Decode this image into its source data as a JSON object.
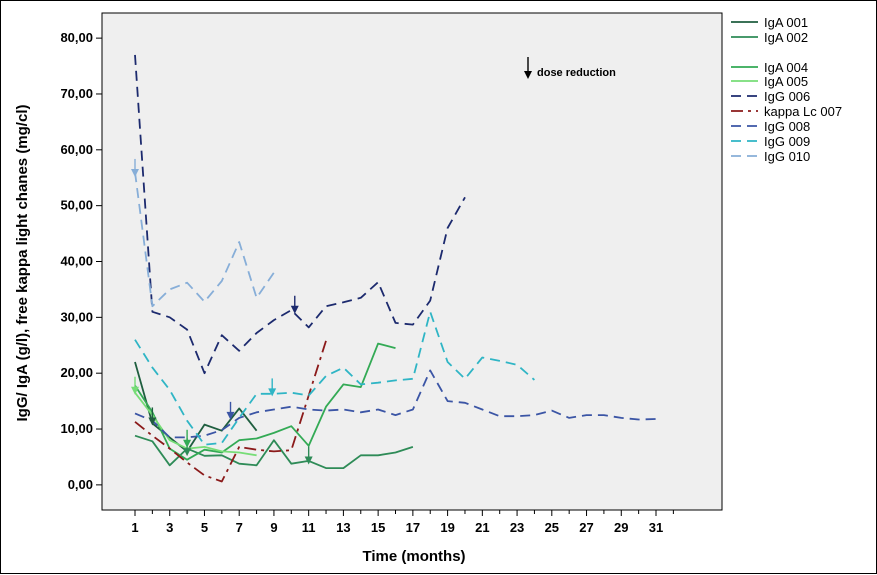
{
  "chart_data": {
    "type": "line",
    "xlabel": "Time (months)",
    "ylabel": "IgG/ IgA (g/l), free kappa light chanes (mg/cl)",
    "xlim": [
      -0.9,
      34.8
    ],
    "ylim": [
      -4.5,
      84.5
    ],
    "x_ticks": [
      1,
      3,
      5,
      7,
      9,
      11,
      13,
      15,
      17,
      19,
      21,
      23,
      25,
      27,
      29,
      31
    ],
    "y_ticks": [
      0,
      10,
      20,
      30,
      40,
      50,
      60,
      70,
      80
    ],
    "y_tick_labels": [
      "0,00",
      "10,00",
      "20,00",
      "30,00",
      "40,00",
      "50,00",
      "60,00",
      "70,00",
      "80,00"
    ],
    "grid": false,
    "legend_position": "right-outside",
    "annotation": {
      "text": "dose reduction",
      "x": 23.4,
      "y": 74
    },
    "series": [
      {
        "name": "IgA 001",
        "color": "#1f5e3f",
        "dash": "solid",
        "points": [
          [
            1,
            22
          ],
          [
            2,
            11
          ],
          [
            3,
            8.5
          ],
          [
            4,
            6
          ],
          [
            5,
            10.8
          ],
          [
            6,
            9.7
          ],
          [
            7,
            13.7
          ],
          [
            8,
            9.7
          ]
        ]
      },
      {
        "name": "IgA 002",
        "color": "#2e8b57",
        "dash": "solid",
        "points": [
          [
            1,
            8.8
          ],
          [
            2,
            7.8
          ],
          [
            3,
            3.5
          ],
          [
            4,
            6.5
          ],
          [
            5,
            5.2
          ],
          [
            6,
            5.3
          ],
          [
            7,
            3.8
          ],
          [
            8,
            3.5
          ],
          [
            9,
            8
          ],
          [
            10,
            3.8
          ],
          [
            11,
            4.3
          ],
          [
            12,
            3
          ],
          [
            13,
            3
          ],
          [
            14,
            5.3
          ],
          [
            15,
            5.3
          ],
          [
            16,
            5.8
          ],
          [
            17,
            6.8
          ]
        ]
      },
      {
        "name": "IgA 004",
        "color": "#33aa55",
        "dash": "solid",
        "points": [
          [
            1,
            17.8
          ],
          [
            2,
            13
          ],
          [
            3,
            6.5
          ],
          [
            4,
            4.5
          ],
          [
            5,
            6.3
          ],
          [
            6,
            5.8
          ],
          [
            7,
            8
          ],
          [
            8,
            8.3
          ],
          [
            9,
            9.3
          ],
          [
            10,
            10.5
          ],
          [
            11,
            7
          ],
          [
            12,
            14
          ],
          [
            13,
            18
          ],
          [
            14,
            17.5
          ],
          [
            15,
            25.3
          ],
          [
            16,
            24.5
          ]
        ]
      },
      {
        "name": "IgA 005",
        "color": "#77dd77",
        "dash": "solid",
        "points": [
          [
            1,
            16.5
          ],
          [
            2,
            12.5
          ],
          [
            3,
            8
          ],
          [
            4,
            6.5
          ],
          [
            5,
            6.8
          ],
          [
            6,
            6
          ],
          [
            7,
            5.8
          ],
          [
            8,
            5.3
          ]
        ]
      },
      {
        "name": "IgG 006",
        "color": "#1c2a6e",
        "dash": "10,6",
        "points": [
          [
            1,
            77
          ],
          [
            2,
            31
          ],
          [
            3,
            30
          ],
          [
            4,
            27.8
          ],
          [
            5,
            20
          ],
          [
            6,
            26.8
          ],
          [
            7,
            24
          ],
          [
            8,
            27.2
          ],
          [
            9,
            29.5
          ],
          [
            10,
            31.3
          ],
          [
            11,
            28.2
          ],
          [
            12,
            32
          ],
          [
            13,
            32.7
          ],
          [
            14,
            33.5
          ],
          [
            15,
            36.3
          ],
          [
            16,
            29
          ],
          [
            17,
            28.7
          ],
          [
            18,
            33
          ],
          [
            19,
            46
          ],
          [
            20,
            51.5
          ]
        ]
      },
      {
        "name": "kappa Lc 007",
        "color": "#8b1a1a",
        "dash": "12,5,3,5",
        "points": [
          [
            1,
            11.3
          ],
          [
            2,
            8.8
          ],
          [
            3,
            6.5
          ],
          [
            4,
            4
          ],
          [
            5,
            1.7
          ],
          [
            6,
            0.6
          ],
          [
            7,
            6.8
          ],
          [
            8,
            6.3
          ],
          [
            9,
            6
          ],
          [
            10,
            6.2
          ],
          [
            11,
            16
          ],
          [
            12,
            25.8
          ]
        ]
      },
      {
        "name": "IgG 008",
        "color": "#3b55a5",
        "dash": "10,6",
        "points": [
          [
            1,
            12.8
          ],
          [
            2,
            11.5
          ],
          [
            3,
            8.5
          ],
          [
            4,
            8.5
          ],
          [
            5,
            8.8
          ],
          [
            6,
            9.8
          ],
          [
            7,
            12
          ],
          [
            8,
            13
          ],
          [
            9,
            13.5
          ],
          [
            10,
            14
          ],
          [
            11,
            13.5
          ],
          [
            12,
            13.3
          ],
          [
            13,
            13.5
          ],
          [
            14,
            13
          ],
          [
            15,
            13.5
          ],
          [
            16,
            12.5
          ],
          [
            17,
            13.5
          ],
          [
            18,
            20.5
          ],
          [
            19,
            15
          ],
          [
            20,
            14.7
          ],
          [
            21,
            13.5
          ],
          [
            22,
            12.3
          ],
          [
            23,
            12.3
          ],
          [
            24,
            12.5
          ],
          [
            25,
            13.3
          ],
          [
            26,
            12
          ],
          [
            27,
            12.5
          ],
          [
            28,
            12.5
          ],
          [
            29,
            12
          ],
          [
            30,
            11.7
          ],
          [
            31,
            11.8
          ]
        ]
      },
      {
        "name": "IgG 009",
        "color": "#2fb5c5",
        "dash": "10,6",
        "points": [
          [
            1,
            26
          ],
          [
            2,
            21
          ],
          [
            3,
            17
          ],
          [
            4,
            11.5
          ],
          [
            5,
            7.2
          ],
          [
            6,
            7.5
          ],
          [
            7,
            12
          ],
          [
            8,
            16.3
          ],
          [
            9,
            16.3
          ],
          [
            10,
            16.5
          ],
          [
            11,
            16
          ],
          [
            12,
            19.5
          ],
          [
            13,
            21
          ],
          [
            14,
            18
          ],
          [
            15,
            18.3
          ],
          [
            16,
            18.7
          ],
          [
            17,
            19
          ],
          [
            18,
            31
          ],
          [
            19,
            22
          ],
          [
            20,
            19
          ],
          [
            21,
            22.8
          ],
          [
            22,
            22.2
          ],
          [
            23,
            21.5
          ],
          [
            24,
            18.8
          ]
        ]
      },
      {
        "name": "IgG 010",
        "color": "#87aed8",
        "dash": "10,6",
        "points": [
          [
            1,
            56
          ],
          [
            2,
            32
          ],
          [
            3,
            35
          ],
          [
            4,
            36.2
          ],
          [
            5,
            32.8
          ],
          [
            6,
            36.5
          ],
          [
            7,
            43.5
          ],
          [
            8,
            33.5
          ],
          [
            9,
            38
          ]
        ]
      }
    ],
    "dose_reduction_arrows": [
      {
        "x": 1,
        "y": 55.5,
        "color": "#87aed8"
      },
      {
        "x": 1,
        "y": 16.5,
        "color": "#77dd77"
      },
      {
        "x": 2,
        "y": 11,
        "color": "#1f5e3f"
      },
      {
        "x": 4,
        "y": 5.5,
        "color": "#2e8b57"
      },
      {
        "x": 4,
        "y": 7,
        "color": "#33aa55"
      },
      {
        "x": 6.5,
        "y": 12,
        "color": "#3b55a5"
      },
      {
        "x": 8.9,
        "y": 16.2,
        "color": "#2fb5c5"
      },
      {
        "x": 10.2,
        "y": 31,
        "color": "#1c2a6e"
      },
      {
        "x": 11,
        "y": 4,
        "color": "#2e8b57"
      }
    ]
  }
}
